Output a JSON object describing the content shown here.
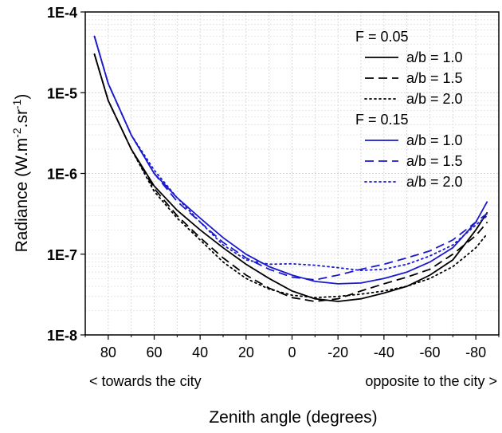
{
  "chart_data": {
    "type": "line",
    "xlabel": "Zenith angle (degrees)",
    "ylabel": "Radiance (W.m",
    "ylabel_parts": {
      "base": "Radiance (W.m",
      "sup1": "-2",
      "mid": ".sr",
      "sup2": "-1",
      "end": ")"
    },
    "x_annotation_left": "< towards the city",
    "x_annotation_right": "opposite to the city >",
    "x_axis_reversed": true,
    "xlim": [
      90,
      -90
    ],
    "x_ticks": [
      80,
      60,
      40,
      20,
      0,
      -20,
      -40,
      -60,
      -80
    ],
    "x_tick_labels": [
      "80",
      "60",
      "40",
      "20",
      "0",
      "-20",
      "-40",
      "-60",
      "-80"
    ],
    "y_scale": "log",
    "ylim": [
      1e-08,
      0.0001
    ],
    "y_ticks": [
      1e-08,
      1e-07,
      1e-06,
      1e-05,
      0.0001
    ],
    "y_tick_labels": [
      "1E-8",
      "1E-7",
      "1E-6",
      "1E-5",
      "1E-4"
    ],
    "grid": true,
    "legend_placement": "top-right",
    "legend_groups": [
      {
        "title": "F = 0.05",
        "entries": [
          "a/b = 1.0",
          "a/b = 1.5",
          "a/b = 2.0"
        ]
      },
      {
        "title": "F = 0.15",
        "entries": [
          "a/b = 1.0",
          "a/b = 1.5",
          "a/b = 2.0"
        ]
      }
    ],
    "series": [
      {
        "name": "a/b = 1.0",
        "group": "F = 0.05",
        "color": "#000000",
        "dash": "solid",
        "x": [
          86,
          80,
          70,
          60,
          50,
          40,
          30,
          20,
          10,
          0,
          -10,
          -20,
          -30,
          -40,
          -50,
          -60,
          -70,
          -80,
          -85
        ],
        "y": [
          3e-05,
          8e-06,
          2e-06,
          7e-07,
          3.5e-07,
          2e-07,
          1.2e-07,
          7.5e-08,
          5e-08,
          3.5e-08,
          2.8e-08,
          2.6e-08,
          2.8e-08,
          3.3e-08,
          4e-08,
          5.5e-08,
          8.5e-08,
          2e-07,
          3.3e-07
        ]
      },
      {
        "name": "a/b = 1.5",
        "group": "F = 0.05",
        "color": "#000000",
        "dash": "dashed",
        "x": [
          86,
          80,
          70,
          60,
          50,
          40,
          30,
          20,
          10,
          0,
          -10,
          -20,
          -30,
          -40,
          -50,
          -60,
          -70,
          -80,
          -85
        ],
        "y": [
          3e-05,
          8e-06,
          2e-06,
          6.5e-07,
          3e-07,
          1.6e-07,
          9e-08,
          5.5e-08,
          3.8e-08,
          2.9e-08,
          2.6e-08,
          2.8e-08,
          3.5e-08,
          4.3e-08,
          5.2e-08,
          6.5e-08,
          1e-07,
          1.7e-07,
          2.5e-07
        ]
      },
      {
        "name": "a/b = 2.0",
        "group": "F = 0.05",
        "color": "#000000",
        "dash": "dotted",
        "x": [
          86,
          80,
          70,
          60,
          50,
          40,
          30,
          20,
          10,
          0,
          -10,
          -20,
          -30,
          -40,
          -50,
          -60,
          -70,
          -80,
          -85
        ],
        "y": [
          3e-05,
          8e-06,
          2e-06,
          6e-07,
          2.8e-07,
          1.5e-07,
          8e-08,
          5e-08,
          3.7e-08,
          3.1e-08,
          2.9e-08,
          3e-08,
          3.2e-08,
          3.5e-08,
          4e-08,
          5e-08,
          7e-08,
          1.2e-07,
          1.8e-07
        ]
      },
      {
        "name": "a/b = 1.0",
        "group": "F = 0.15",
        "color": "#1a1acc",
        "dash": "solid",
        "x": [
          86,
          80,
          70,
          60,
          50,
          40,
          30,
          20,
          10,
          0,
          -10,
          -20,
          -30,
          -40,
          -50,
          -60,
          -70,
          -80,
          -85
        ],
        "y": [
          5e-05,
          1.3e-05,
          3e-06,
          1e-06,
          5e-07,
          2.8e-07,
          1.6e-07,
          1e-07,
          7e-08,
          5.5e-08,
          4.6e-08,
          4.3e-08,
          4.4e-08,
          5e-08,
          6e-08,
          8e-08,
          1.2e-07,
          2.5e-07,
          4.5e-07
        ]
      },
      {
        "name": "a/b = 1.5",
        "group": "F = 0.15",
        "color": "#1a1acc",
        "dash": "dashed",
        "x": [
          86,
          80,
          70,
          60,
          50,
          40,
          30,
          20,
          10,
          0,
          -10,
          -20,
          -30,
          -40,
          -50,
          -60,
          -70,
          -80,
          -85
        ],
        "y": [
          5e-05,
          1.3e-05,
          3e-06,
          1e-06,
          4.5e-07,
          2.5e-07,
          1.4e-07,
          9e-08,
          6.5e-08,
          5.2e-08,
          4.8e-08,
          5.5e-08,
          6.5e-08,
          7.5e-08,
          9e-08,
          1.1e-07,
          1.5e-07,
          2.5e-07,
          3.2e-07
        ]
      },
      {
        "name": "a/b = 2.0",
        "group": "F = 0.15",
        "color": "#1a1acc",
        "dash": "dotted",
        "x": [
          86,
          80,
          70,
          60,
          50,
          40,
          30,
          20,
          10,
          0,
          -10,
          -20,
          -30,
          -40,
          -50,
          -60,
          -70,
          -80,
          -85
        ],
        "y": [
          5e-05,
          1.3e-05,
          3e-06,
          1.1e-06,
          5e-07,
          2.5e-07,
          1.3e-07,
          8.5e-08,
          7.5e-08,
          7.6e-08,
          7.3e-08,
          6.8e-08,
          6.3e-08,
          6.5e-08,
          7.5e-08,
          9.5e-08,
          1.3e-07,
          2.3e-07,
          3e-07
        ]
      }
    ]
  }
}
